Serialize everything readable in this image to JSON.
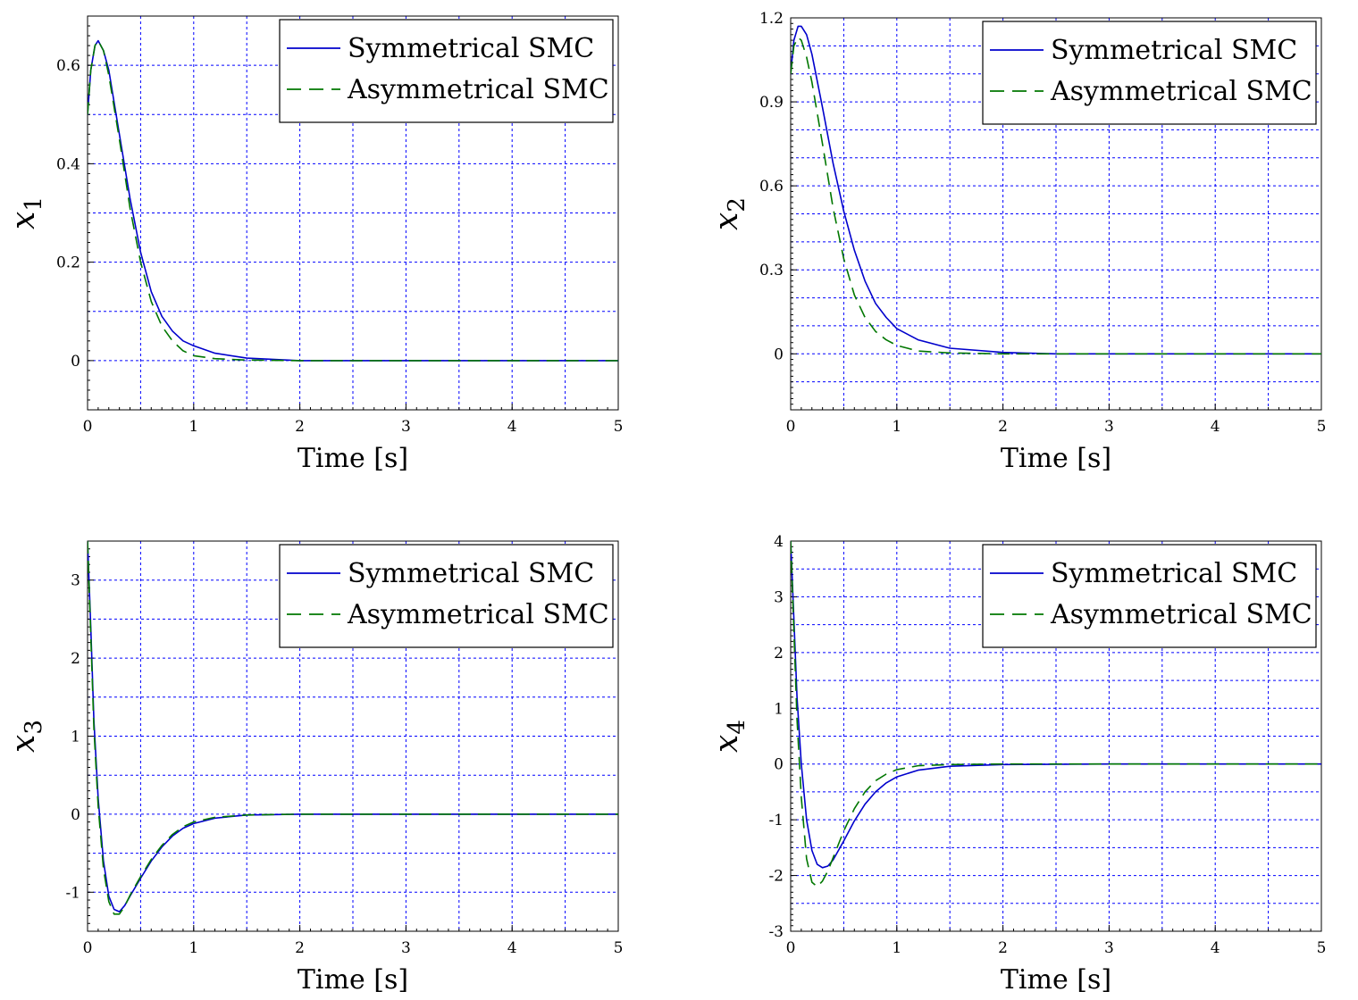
{
  "colors": {
    "symmetrical": "#0000cc",
    "asymmetrical": "#007700",
    "grid": "#0000ff"
  },
  "chart_data": [
    {
      "type": "line",
      "xlabel": "Time [s]",
      "ylabel": "x",
      "ylabel_sub": "1",
      "xlim": [
        0,
        5
      ],
      "ylim": [
        -0.1,
        0.7
      ],
      "xticks": [
        0,
        1,
        2,
        3,
        4,
        5
      ],
      "xtick_labels": [
        "0",
        "1",
        "2",
        "3",
        "4",
        "5"
      ],
      "yticks": [
        0,
        0.2,
        0.4,
        0.6
      ],
      "ytick_labels": [
        "0",
        "0.2",
        "0.4",
        "0.6"
      ],
      "xgrid": [
        0.5,
        1,
        1.5,
        2,
        2.5,
        3,
        3.5,
        4,
        4.5
      ],
      "ygrid": [
        0,
        0.1,
        0.2,
        0.3,
        0.4,
        0.5,
        0.6
      ],
      "grid": true,
      "legend": "top-right",
      "series": [
        {
          "name": "Symmetrical SMC",
          "style": "solid",
          "x": [
            0,
            0.03,
            0.07,
            0.1,
            0.15,
            0.2,
            0.3,
            0.4,
            0.5,
            0.6,
            0.7,
            0.8,
            0.9,
            1.0,
            1.2,
            1.5,
            2.0,
            3,
            4,
            5
          ],
          "y": [
            0.5,
            0.59,
            0.64,
            0.65,
            0.63,
            0.59,
            0.46,
            0.33,
            0.22,
            0.14,
            0.09,
            0.06,
            0.04,
            0.03,
            0.015,
            0.005,
            0,
            0,
            0,
            0
          ]
        },
        {
          "name": "Asymmetrical SMC",
          "style": "dashed",
          "x": [
            0,
            0.03,
            0.07,
            0.1,
            0.15,
            0.2,
            0.3,
            0.4,
            0.5,
            0.6,
            0.7,
            0.8,
            0.9,
            1.0,
            1.2,
            1.5,
            2.0,
            3,
            4,
            5
          ],
          "y": [
            0.5,
            0.59,
            0.64,
            0.65,
            0.63,
            0.58,
            0.45,
            0.31,
            0.2,
            0.12,
            0.07,
            0.04,
            0.02,
            0.01,
            0.004,
            0.001,
            0,
            0,
            0,
            0
          ]
        }
      ]
    },
    {
      "type": "line",
      "xlabel": "Time [s]",
      "ylabel": "x",
      "ylabel_sub": "2",
      "xlim": [
        0,
        5
      ],
      "ylim": [
        -0.2,
        1.2
      ],
      "xticks": [
        0,
        1,
        2,
        3,
        4,
        5
      ],
      "xtick_labels": [
        "0",
        "1",
        "2",
        "3",
        "4",
        "5"
      ],
      "yticks": [
        0,
        0.3,
        0.6,
        0.9,
        1.2
      ],
      "ytick_labels": [
        "0",
        "0.3",
        "0.6",
        "0.9",
        "1.2"
      ],
      "xgrid": [
        0.5,
        1,
        1.5,
        2,
        2.5,
        3,
        3.5,
        4,
        4.5
      ],
      "ygrid": [
        -0.1,
        0,
        0.1,
        0.2,
        0.3,
        0.4,
        0.5,
        0.6,
        0.7,
        0.8,
        0.9,
        1.0,
        1.1
      ],
      "grid": true,
      "legend": "top-right",
      "series": [
        {
          "name": "Symmetrical SMC",
          "style": "solid",
          "x": [
            0,
            0.03,
            0.07,
            0.1,
            0.15,
            0.2,
            0.3,
            0.4,
            0.5,
            0.6,
            0.7,
            0.8,
            0.9,
            1.0,
            1.2,
            1.5,
            2.0,
            2.5,
            3,
            4,
            5
          ],
          "y": [
            1.0,
            1.12,
            1.17,
            1.17,
            1.14,
            1.07,
            0.88,
            0.68,
            0.51,
            0.37,
            0.26,
            0.18,
            0.13,
            0.09,
            0.05,
            0.02,
            0.005,
            0,
            0,
            0,
            0
          ]
        },
        {
          "name": "Asymmetrical SMC",
          "style": "dashed",
          "x": [
            0,
            0.03,
            0.07,
            0.1,
            0.15,
            0.2,
            0.3,
            0.4,
            0.5,
            0.6,
            0.7,
            0.8,
            0.9,
            1.0,
            1.2,
            1.5,
            2.0,
            2.5,
            3,
            4,
            5
          ],
          "y": [
            1.0,
            1.1,
            1.13,
            1.12,
            1.06,
            0.97,
            0.75,
            0.52,
            0.34,
            0.21,
            0.13,
            0.08,
            0.05,
            0.03,
            0.01,
            0.003,
            0,
            0,
            0,
            0,
            0
          ]
        }
      ]
    },
    {
      "type": "line",
      "xlabel": "Time [s]",
      "ylabel": "x",
      "ylabel_sub": "3",
      "xlim": [
        0,
        5
      ],
      "ylim": [
        -1.5,
        3.5
      ],
      "xticks": [
        0,
        1,
        2,
        3,
        4,
        5
      ],
      "xtick_labels": [
        "0",
        "1",
        "2",
        "3",
        "4",
        "5"
      ],
      "yticks": [
        -1,
        0,
        1,
        2,
        3
      ],
      "ytick_labels": [
        "-1",
        "0",
        "1",
        "2",
        "3"
      ],
      "xgrid": [
        0.5,
        1,
        1.5,
        2,
        2.5,
        3,
        3.5,
        4,
        4.5
      ],
      "ygrid": [
        -1,
        -0.5,
        0,
        0.5,
        1,
        1.5,
        2,
        2.5,
        3
      ],
      "grid": true,
      "legend": "top-right",
      "series": [
        {
          "name": "Symmetrical SMC",
          "style": "solid",
          "x": [
            0,
            0.03,
            0.06,
            0.1,
            0.15,
            0.2,
            0.25,
            0.3,
            0.35,
            0.4,
            0.5,
            0.6,
            0.7,
            0.8,
            0.9,
            1.0,
            1.2,
            1.5,
            2,
            3,
            4,
            5
          ],
          "y": [
            3.5,
            2.4,
            1.2,
            0.2,
            -0.6,
            -1.05,
            -1.22,
            -1.25,
            -1.17,
            -1.05,
            -0.82,
            -0.6,
            -0.42,
            -0.28,
            -0.18,
            -0.12,
            -0.05,
            -0.01,
            0,
            0,
            0,
            0
          ]
        },
        {
          "name": "Asymmetrical SMC",
          "style": "dashed",
          "x": [
            0,
            0.03,
            0.06,
            0.1,
            0.15,
            0.2,
            0.25,
            0.3,
            0.35,
            0.4,
            0.5,
            0.6,
            0.7,
            0.8,
            0.9,
            1.0,
            1.2,
            1.5,
            2,
            3,
            4,
            5
          ],
          "y": [
            3.5,
            2.3,
            1.1,
            0.1,
            -0.7,
            -1.12,
            -1.28,
            -1.28,
            -1.18,
            -1.04,
            -0.8,
            -0.58,
            -0.4,
            -0.26,
            -0.16,
            -0.1,
            -0.04,
            -0.01,
            0,
            0,
            0,
            0
          ]
        }
      ]
    },
    {
      "type": "line",
      "xlabel": "Time [s]",
      "ylabel": "x",
      "ylabel_sub": "4",
      "xlim": [
        0,
        5
      ],
      "ylim": [
        -3,
        4
      ],
      "xticks": [
        0,
        1,
        2,
        3,
        4,
        5
      ],
      "xtick_labels": [
        "0",
        "1",
        "2",
        "3",
        "4",
        "5"
      ],
      "yticks": [
        -3,
        -2,
        -1,
        0,
        1,
        2,
        3,
        4
      ],
      "ytick_labels": [
        "-3",
        "-2",
        "-1",
        "0",
        "1",
        "2",
        "3",
        "4"
      ],
      "xgrid": [
        0.5,
        1,
        1.5,
        2,
        2.5,
        3,
        3.5,
        4,
        4.5
      ],
      "ygrid": [
        -2.5,
        -2,
        -1.5,
        -1,
        -0.5,
        0,
        0.5,
        1,
        1.5,
        2,
        2.5,
        3,
        3.5
      ],
      "grid": true,
      "legend": "top-right",
      "series": [
        {
          "name": "Symmetrical SMC",
          "style": "solid",
          "x": [
            0,
            0.03,
            0.06,
            0.1,
            0.15,
            0.2,
            0.25,
            0.3,
            0.35,
            0.4,
            0.5,
            0.6,
            0.7,
            0.8,
            0.9,
            1.0,
            1.2,
            1.5,
            2,
            3,
            4,
            5
          ],
          "y": [
            4.0,
            2.6,
            1.2,
            0.0,
            -1.0,
            -1.55,
            -1.8,
            -1.86,
            -1.83,
            -1.72,
            -1.38,
            -1.02,
            -0.72,
            -0.5,
            -0.34,
            -0.23,
            -0.11,
            -0.04,
            -0.01,
            0,
            0,
            0
          ]
        },
        {
          "name": "Asymmetrical SMC",
          "style": "dashed",
          "x": [
            0,
            0.03,
            0.06,
            0.1,
            0.15,
            0.2,
            0.25,
            0.3,
            0.35,
            0.4,
            0.5,
            0.6,
            0.7,
            0.8,
            0.9,
            1.0,
            1.2,
            1.5,
            2,
            3,
            4,
            5
          ],
          "y": [
            4.0,
            2.4,
            0.8,
            -0.6,
            -1.7,
            -2.12,
            -2.2,
            -2.1,
            -1.92,
            -1.68,
            -1.2,
            -0.8,
            -0.5,
            -0.3,
            -0.18,
            -0.1,
            -0.03,
            -0.01,
            0,
            0,
            0,
            0
          ]
        }
      ]
    }
  ]
}
